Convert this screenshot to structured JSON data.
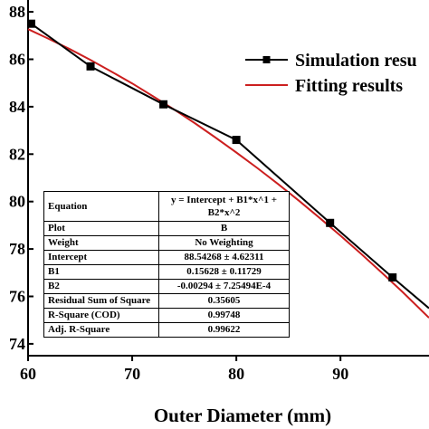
{
  "chart_data": {
    "type": "line",
    "xlabel": "Outer Diameter (mm)",
    "ylabel": "",
    "xlim": [
      60,
      98.5
    ],
    "ylim": [
      73.5,
      88.5
    ],
    "x_ticks": [
      "60",
      "70",
      "80",
      "90"
    ],
    "x_tick_values": [
      60,
      70,
      80,
      90
    ],
    "y_ticks": [
      "88",
      "86",
      "84",
      "82",
      "80",
      "78",
      "76",
      "74"
    ],
    "y_tick_values": [
      88,
      86,
      84,
      82,
      80,
      78,
      76,
      74
    ],
    "grid": false,
    "legend_position": "top-right",
    "series": [
      {
        "name": "Simulation resu",
        "color": "#000000",
        "marker": "square",
        "x": [
          60.3,
          66,
          73,
          80,
          89,
          95,
          98.5
        ],
        "y": [
          87.5,
          85.7,
          84.1,
          82.6,
          79.1,
          76.8,
          75.5
        ]
      },
      {
        "name": "Fitting results",
        "color": "#cc1f1f",
        "marker": "none",
        "x": [
          60,
          62,
          64,
          66,
          68,
          70,
          72,
          74,
          76,
          78,
          80,
          82,
          84,
          86,
          88,
          90,
          92,
          94,
          96,
          98.5
        ],
        "y": [
          87.27,
          86.86,
          86.43,
          85.97,
          85.48,
          84.98,
          84.44,
          83.89,
          83.31,
          82.7,
          82.07,
          81.42,
          80.74,
          80.04,
          79.31,
          78.56,
          77.79,
          76.99,
          76.17,
          75.1
        ]
      }
    ]
  },
  "fit_table": {
    "rows": [
      {
        "key": "Equation",
        "value": "y = Intercept + B1*x^1 + B2*x^2"
      },
      {
        "key": "Plot",
        "value": "B"
      },
      {
        "key": "Weight",
        "value": "No Weighting"
      },
      {
        "key": "Intercept",
        "value": "88.54268 ± 4.62311"
      },
      {
        "key": "B1",
        "value": "0.15628 ± 0.11729"
      },
      {
        "key": "B2",
        "value": "-0.00294 ± 7.25494E-4"
      },
      {
        "key": "Residual Sum of Square",
        "value": "0.35605"
      },
      {
        "key": "R-Square (COD)",
        "value": "0.99748"
      },
      {
        "key": "Adj. R-Square",
        "value": "0.99622"
      }
    ]
  }
}
